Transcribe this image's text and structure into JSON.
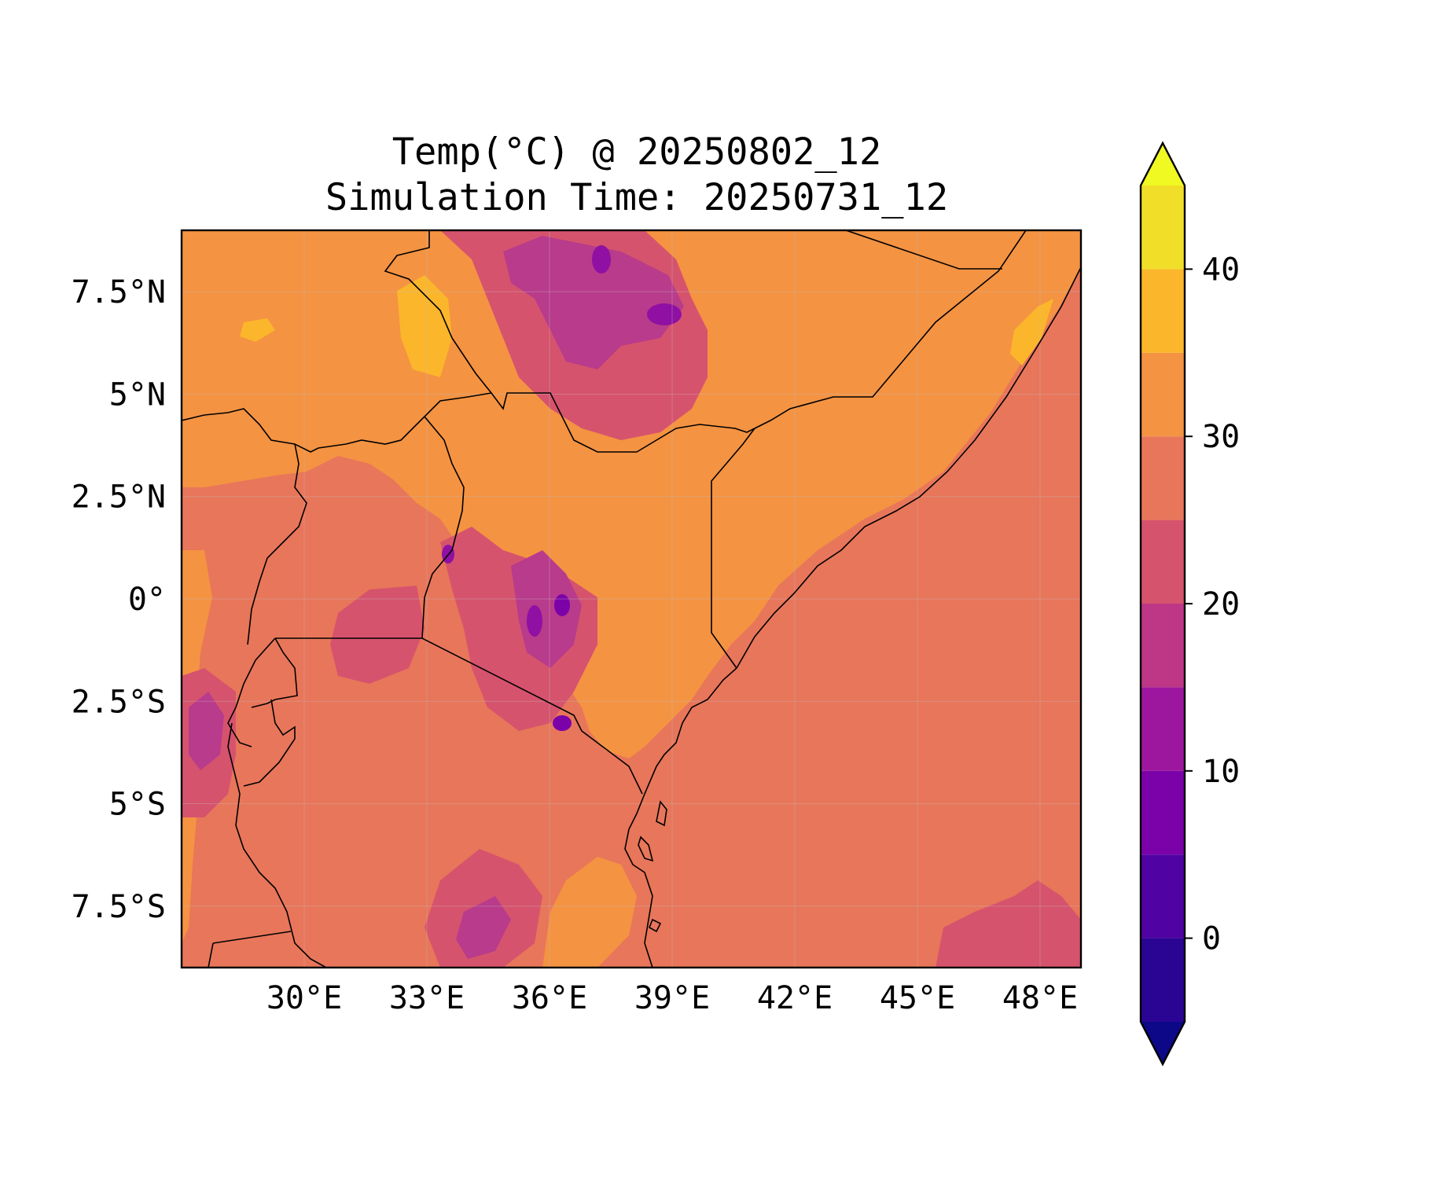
{
  "title": {
    "line1": "Temp(°C) @ 20250802_12",
    "line2": "Simulation Time: 20250731_12"
  },
  "map": {
    "lon_range": [
      27.0,
      49.0
    ],
    "lat_range": [
      -9.0,
      9.0
    ],
    "x_ticks": [
      "30°E",
      "33°E",
      "36°E",
      "39°E",
      "42°E",
      "45°E",
      "48°E"
    ],
    "x_tick_values": [
      30,
      33,
      36,
      39,
      42,
      45,
      48
    ],
    "y_ticks": [
      "7.5°N",
      "5°N",
      "2.5°N",
      "0°",
      "2.5°S",
      "5°S",
      "7.5°S"
    ],
    "y_tick_values": [
      7.5,
      5,
      2.5,
      0,
      -2.5,
      -5,
      -7.5
    ],
    "gridlines": true,
    "colors": {
      "ocean": "#e8765a",
      "lowland": "#f49342",
      "hot": "#fbb62b",
      "mid": "#d6536d",
      "cool": "#b83b8c",
      "cold": "#8f10a3"
    }
  },
  "colorbar": {
    "levels": [
      -5,
      0,
      5,
      10,
      15,
      20,
      25,
      30,
      35,
      40,
      45
    ],
    "colors": [
      "#0d0887",
      "#2a0593",
      "#5002a2",
      "#7a02a8",
      "#9c179e",
      "#bd3786",
      "#d6536d",
      "#e8765a",
      "#f49342",
      "#fbb62b",
      "#f1de28",
      "#f0f921"
    ],
    "tick_labels": [
      "0",
      "10",
      "20",
      "30",
      "40"
    ],
    "tick_values": [
      0,
      10,
      20,
      30,
      40
    ],
    "extend": "both"
  }
}
